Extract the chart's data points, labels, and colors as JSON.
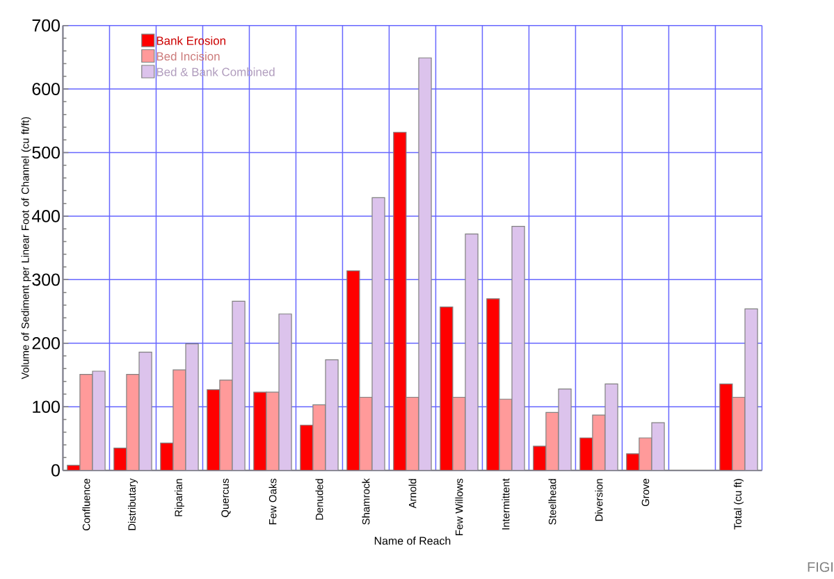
{
  "chart_data": {
    "type": "bar",
    "xlabel": "Name of Reach",
    "ylabel": "Volume of Sediment per Linear Foot of Channel (cu ft/ft)",
    "categories": [
      "Confluence",
      "Distributary",
      "Riparian",
      "Quercus",
      "Few Oaks",
      "Denuded",
      "Shamrock",
      "Arnold",
      "Few Willows",
      "Intermittent",
      "Steelhead",
      "Diversion",
      "Grove",
      null,
      "Total (cu ft)"
    ],
    "series": [
      {
        "name": "Bank Erosion",
        "color": "#ff0000",
        "values": [
          8,
          35,
          43,
          127,
          123,
          71,
          314,
          532,
          257,
          270,
          38,
          51,
          26,
          null,
          136
        ]
      },
      {
        "name": "Bed Incision",
        "color": "#ff9a9a",
        "values": [
          151,
          151,
          158,
          142,
          123,
          103,
          115,
          115,
          115,
          112,
          91,
          87,
          51,
          null,
          115
        ]
      },
      {
        "name": "Bed & Bank Combined",
        "color": "#dcc3ec",
        "values": [
          156,
          186,
          199,
          266,
          246,
          174,
          429,
          649,
          372,
          384,
          128,
          136,
          75,
          null,
          254
        ]
      }
    ],
    "ylim": [
      0,
      700
    ],
    "yticks": [
      0,
      100,
      200,
      300,
      400,
      500,
      600,
      700
    ],
    "grid": true,
    "legend": "top left",
    "annotations": [
      "FIGI"
    ]
  }
}
